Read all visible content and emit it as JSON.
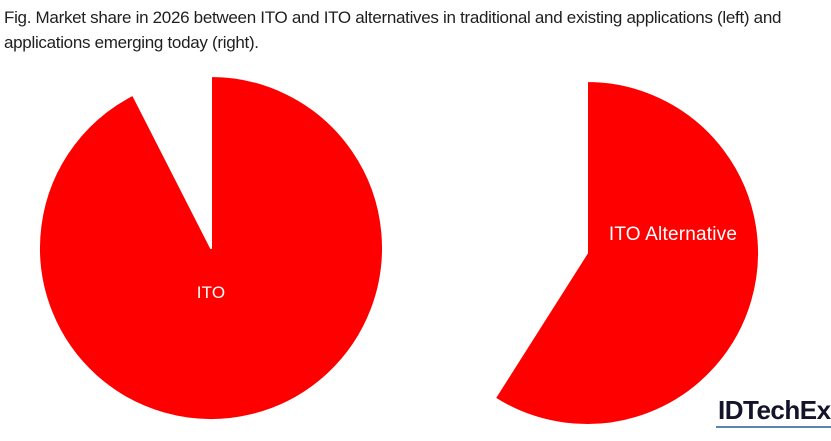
{
  "caption": {
    "lines": [
      "Fig. Market share in 2026 between ITO and ITO alternatives in traditional and existing applications (left) and",
      "applications emerging today (right)."
    ]
  },
  "branding": {
    "logo_text": "IDTechEx"
  },
  "colors": {
    "ito_red": "#fe0000",
    "alternative_navy": "#0e2663",
    "slice_divider": "#ffffff",
    "label_text": "#ffffff",
    "caption_text": "#1f1f1f",
    "logo_text": "#13132b",
    "logo_underline": "#5b84ae"
  },
  "chart_data": [
    {
      "type": "pie",
      "title": "Market share in 2026: traditional and existing applications (left)",
      "start_angle_deg": 0,
      "direction": "clockwise",
      "legend_position": "none",
      "slices": [
        {
          "label": "ITO alternative",
          "value": 7.5,
          "color": "#0e2663",
          "label_shown": false
        },
        {
          "label": "ITO",
          "value": 92.5,
          "color": "#fe0000",
          "label_shown": true
        }
      ]
    },
    {
      "type": "pie",
      "title": "Market share in 2026: applications emerging today (right)",
      "start_angle_deg": 0,
      "direction": "clockwise",
      "legend_position": "none",
      "slices": [
        {
          "label": "ITO Alternative",
          "value": 41,
          "color": "#0e2663",
          "label_shown": true
        },
        {
          "label": "ITO",
          "value": 59,
          "color": "#fe0000",
          "label_shown": false
        }
      ]
    }
  ]
}
